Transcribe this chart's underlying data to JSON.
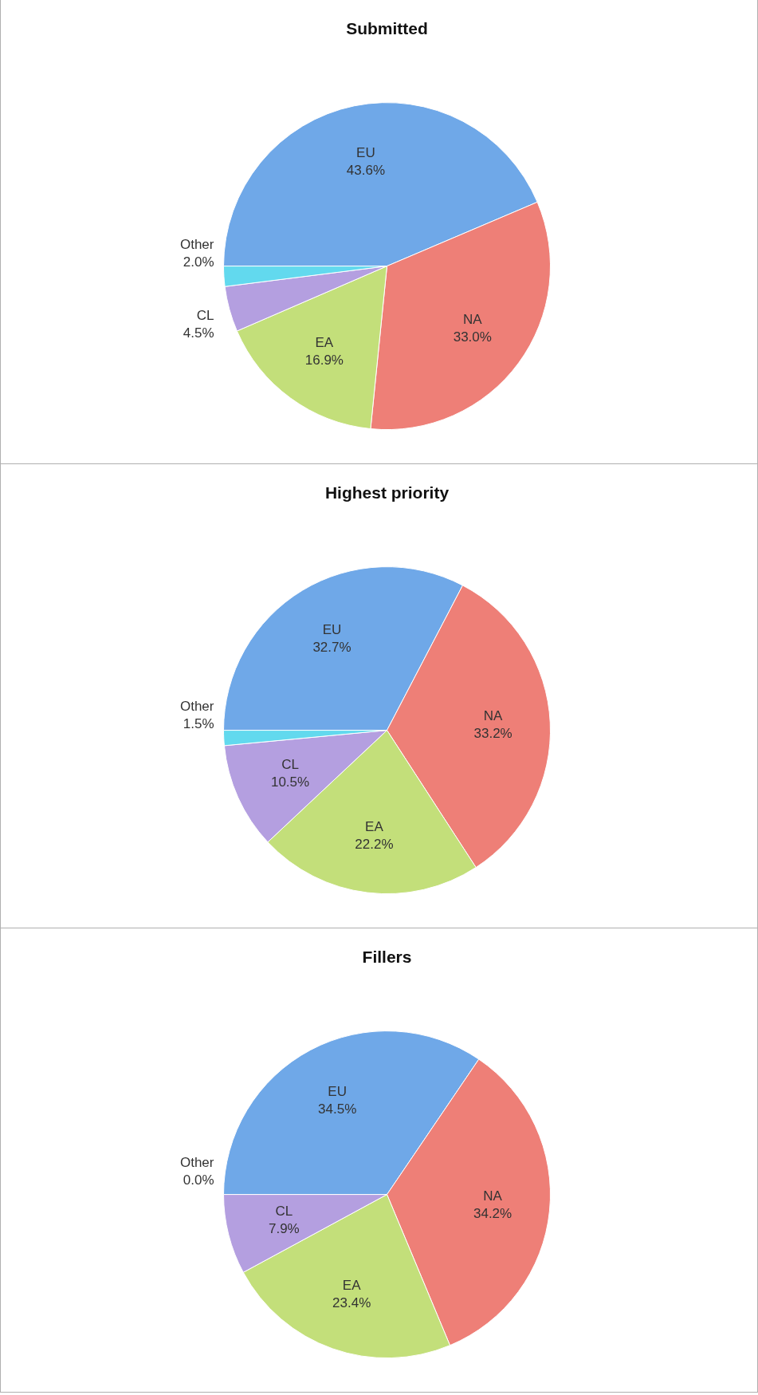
{
  "chart_data": [
    {
      "type": "pie",
      "title": "Submitted",
      "categories": [
        "EU",
        "NA",
        "EA",
        "CL",
        "Other"
      ],
      "values": [
        43.6,
        33.0,
        16.9,
        4.5,
        2.0
      ],
      "value_labels": [
        "43.6%",
        "33.0%",
        "16.9%",
        "4.5%",
        "2.0%"
      ],
      "colors": [
        "#6fa8e8",
        "#ee7f77",
        "#c3df7a",
        "#b49fe0",
        "#62d9ee"
      ],
      "legend": false
    },
    {
      "type": "pie",
      "title": "Highest priority",
      "categories": [
        "EU",
        "NA",
        "EA",
        "CL",
        "Other"
      ],
      "values": [
        32.7,
        33.2,
        22.2,
        10.5,
        1.5
      ],
      "value_labels": [
        "32.7%",
        "33.2%",
        "22.2%",
        "10.5%",
        "1.5%"
      ],
      "colors": [
        "#6fa8e8",
        "#ee7f77",
        "#c3df7a",
        "#b49fe0",
        "#62d9ee"
      ],
      "legend": false
    },
    {
      "type": "pie",
      "title": "Fillers",
      "categories": [
        "EU",
        "NA",
        "EA",
        "CL",
        "Other"
      ],
      "values": [
        34.5,
        34.2,
        23.4,
        7.9,
        0.0
      ],
      "value_labels": [
        "34.5%",
        "34.2%",
        "23.4%",
        "7.9%",
        "0.0%"
      ],
      "colors": [
        "#6fa8e8",
        "#ee7f77",
        "#c3df7a",
        "#b49fe0",
        "#62d9ee"
      ],
      "legend": false
    }
  ]
}
